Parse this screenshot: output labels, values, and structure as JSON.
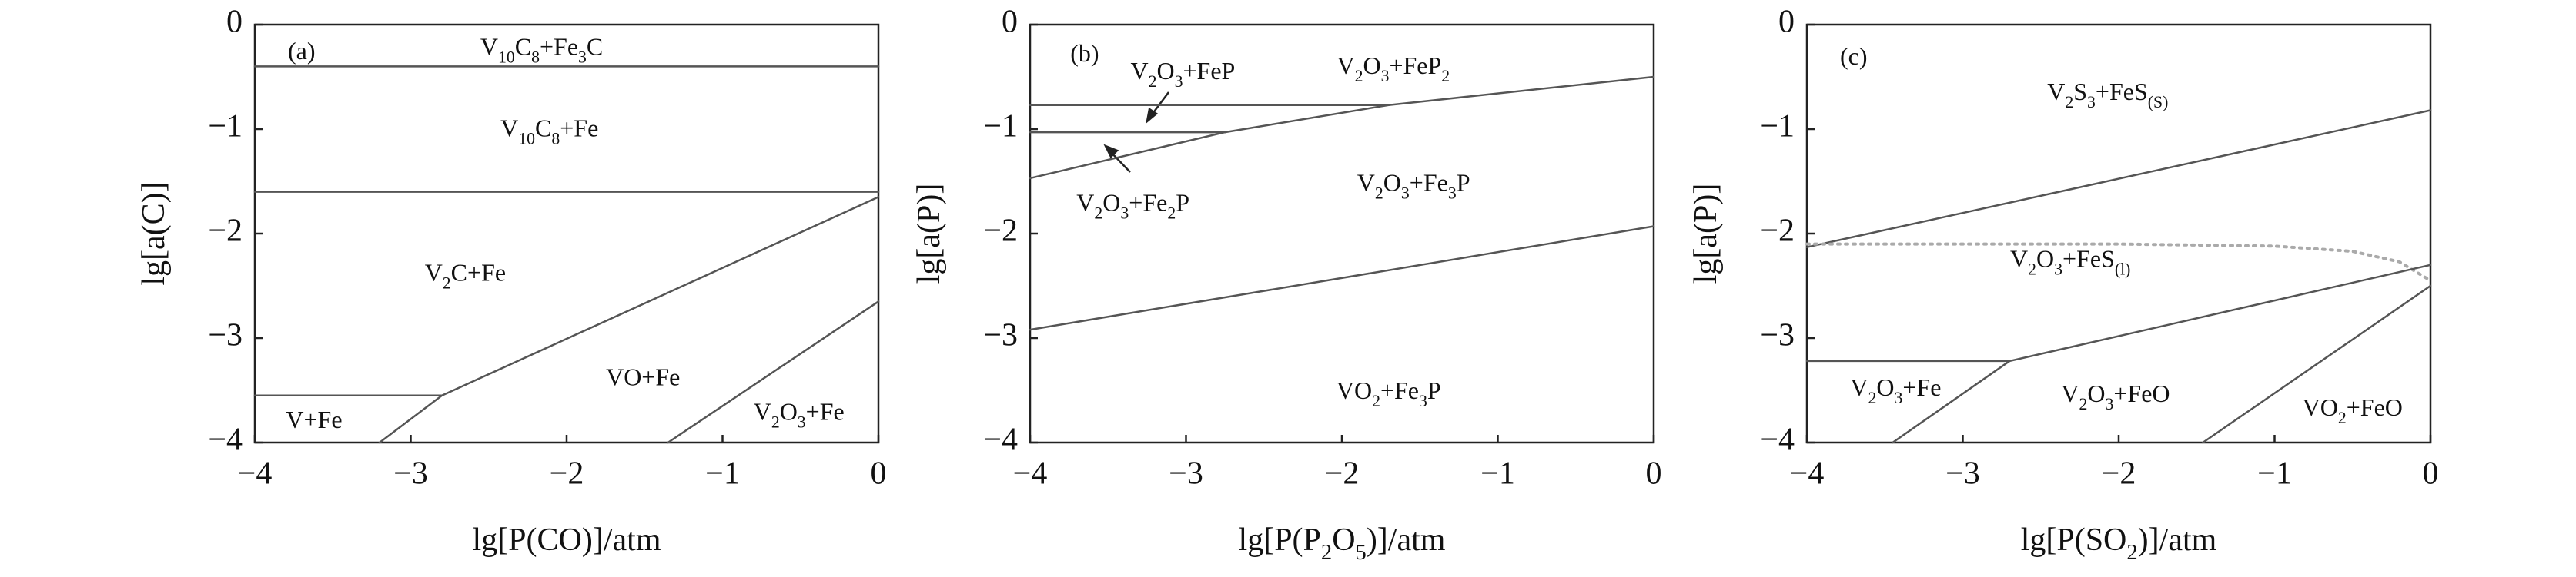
{
  "chart_data": [
    {
      "type": "line",
      "xlabel": [
        "lg[P(CO)]/atm"
      ],
      "ylabel": [
        "lg[a(C)]"
      ],
      "xlim": [
        -4,
        0
      ],
      "ylim": [
        -4,
        0
      ],
      "xticks": [
        {
          "value": -4,
          "label": "−4"
        },
        {
          "value": -3,
          "label": "−3"
        },
        {
          "value": -2,
          "label": "−2"
        },
        {
          "value": -1,
          "label": "−1"
        },
        0
      ],
      "yticks": [
        0,
        {
          "value": -1,
          "label": "−1"
        },
        {
          "value": -2,
          "label": "−2"
        },
        {
          "value": -3,
          "label": "−3"
        },
        {
          "value": -4,
          "label": "−4"
        }
      ],
      "series": [
        {
          "color": "#555555",
          "x": [
            -4,
            0
          ],
          "y": [
            -0.4,
            -0.4
          ]
        },
        {
          "color": "#555555",
          "x": [
            -4,
            0
          ],
          "y": [
            -1.6,
            -1.6
          ]
        },
        {
          "color": "#555555",
          "x": [
            -2.8,
            0
          ],
          "y": [
            -3.55,
            -1.65
          ]
        },
        {
          "color": "#555555",
          "x": [
            -4,
            -2.8
          ],
          "y": [
            -3.55,
            -3.55
          ]
        },
        {
          "color": "#555555",
          "x": [
            -3.2,
            -2.8
          ],
          "y": [
            -4,
            -3.55
          ]
        },
        {
          "color": "#555555",
          "x": [
            -1.35,
            0
          ],
          "y": [
            -4,
            -2.65
          ]
        }
      ],
      "annotations": [
        {
          "text": [
            "(a)"
          ],
          "x": -3.7,
          "y": -0.28
        },
        {
          "text": [
            "V",
            "10",
            "C",
            "8",
            "+Fe",
            "3",
            "C"
          ],
          "x": -2.16,
          "y": -0.24
        },
        {
          "text": [
            "V",
            "10",
            "C",
            "8",
            "+Fe"
          ],
          "x": -2.11,
          "y": -1.02
        },
        {
          "text": [
            "V",
            "2",
            "C+Fe"
          ],
          "x": -2.65,
          "y": -2.4
        },
        {
          "text": [
            "VO+Fe"
          ],
          "x": -1.51,
          "y": -3.4
        },
        {
          "text": [
            "V",
            "2",
            "O",
            "3",
            "+Fe"
          ],
          "x": -0.51,
          "y": -3.73
        },
        {
          "text": [
            "V+Fe"
          ],
          "x": -3.62,
          "y": -3.81
        }
      ]
    },
    {
      "type": "line",
      "xlabel": [
        "lg[P(P",
        "2",
        "O",
        "5",
        ")]/atm"
      ],
      "ylabel": [
        "lg[a(P)]"
      ],
      "xlim": [
        -4,
        0
      ],
      "ylim": [
        -4,
        0
      ],
      "xticks": [
        {
          "value": -4,
          "label": "−4"
        },
        {
          "value": -3,
          "label": "−3"
        },
        {
          "value": -2,
          "label": "−2"
        },
        {
          "value": -1,
          "label": "−1"
        },
        0
      ],
      "yticks": [
        0,
        {
          "value": -1,
          "label": "−1"
        },
        {
          "value": -2,
          "label": "−2"
        },
        {
          "value": -3,
          "label": "−3"
        },
        {
          "value": -4,
          "label": "−4"
        }
      ],
      "series": [
        {
          "color": "#555555",
          "x": [
            -4,
            -1.7
          ],
          "y": [
            -0.77,
            -0.77
          ]
        },
        {
          "color": "#555555",
          "x": [
            -4,
            -2.75
          ],
          "y": [
            -1.03,
            -1.03
          ]
        },
        {
          "color": "#555555",
          "x": [
            -4,
            -2.75,
            -1.7,
            0
          ],
          "y": [
            -1.47,
            -1.03,
            -0.77,
            -0.5
          ]
        },
        {
          "color": "#555555",
          "x": [
            -4,
            0
          ],
          "y": [
            -2.92,
            -1.93
          ]
        }
      ],
      "annotations": [
        {
          "text": [
            "(b)"
          ],
          "x": -3.65,
          "y": -0.3
        },
        {
          "text": [
            "V",
            "2",
            "O",
            "3",
            "+FeP"
          ],
          "x": -3.02,
          "y": -0.47
        },
        {
          "text": [
            "V",
            "2",
            "O",
            "3",
            "+FeP",
            "2"
          ],
          "x": -1.67,
          "y": -0.42
        },
        {
          "text": [
            "V",
            "2",
            "O",
            "3",
            "+Fe",
            "2",
            "P"
          ],
          "x": -3.34,
          "y": -1.73
        },
        {
          "text": [
            "V",
            "2",
            "O",
            "3",
            "+Fe",
            "3",
            "P"
          ],
          "x": -1.54,
          "y": -1.54
        },
        {
          "text": [
            "VO",
            "2",
            "+Fe",
            "3",
            "P"
          ],
          "x": -1.7,
          "y": -3.53
        }
      ]
    },
    {
      "type": "line",
      "xlabel": [
        "lg[P(SO",
        "2",
        ")]/atm"
      ],
      "ylabel": [
        "lg[a(P)]"
      ],
      "xlim": [
        -4,
        0
      ],
      "ylim": [
        -4,
        0
      ],
      "xticks": [
        {
          "value": -4,
          "label": "−4"
        },
        {
          "value": -3,
          "label": "−3"
        },
        {
          "value": -2,
          "label": "−2"
        },
        {
          "value": -1,
          "label": "−1"
        },
        0
      ],
      "yticks": [
        0,
        {
          "value": -1,
          "label": "−1"
        },
        {
          "value": -2,
          "label": "−2"
        },
        {
          "value": -3,
          "label": "−3"
        },
        {
          "value": -4,
          "label": "−4"
        }
      ],
      "series": [
        {
          "color": "#555555",
          "x": [
            -4,
            0
          ],
          "y": [
            -2.13,
            -0.82
          ]
        },
        {
          "color": "#aaaaaa",
          "style": "dotted",
          "x": [
            -4,
            -2,
            -1,
            -0.5,
            -0.2,
            0
          ],
          "y": [
            -2.1,
            -2.1,
            -2.12,
            -2.17,
            -2.27,
            -2.45
          ]
        },
        {
          "color": "#555555",
          "x": [
            -2.7,
            0
          ],
          "y": [
            -3.22,
            -2.3
          ]
        },
        {
          "color": "#555555",
          "x": [
            -4,
            -2.7
          ],
          "y": [
            -3.22,
            -3.22
          ]
        },
        {
          "color": "#555555",
          "x": [
            -3.45,
            -2.7
          ],
          "y": [
            -4,
            -3.22
          ]
        },
        {
          "color": "#555555",
          "x": [
            -1.46,
            0
          ],
          "y": [
            -4,
            -2.5
          ]
        }
      ],
      "annotations": [
        {
          "text": [
            "(c)"
          ],
          "x": -3.7,
          "y": -0.33
        },
        {
          "text": [
            "V",
            "2",
            "S",
            "3",
            "+FeS",
            "(S)"
          ],
          "x": -2.07,
          "y": -0.67
        },
        {
          "text": [
            "V",
            "2",
            "O",
            "3",
            "+FeS",
            "(l)"
          ],
          "x": -2.31,
          "y": -2.27
        },
        {
          "text": [
            "V",
            "2",
            "O",
            "3",
            "+Fe"
          ],
          "x": -3.43,
          "y": -3.5
        },
        {
          "text": [
            "V",
            "2",
            "O",
            "3",
            "+FeO"
          ],
          "x": -2.02,
          "y": -3.56
        },
        {
          "text": [
            "VO",
            "2",
            "+FeO"
          ],
          "x": -0.5,
          "y": -3.69
        }
      ]
    }
  ]
}
